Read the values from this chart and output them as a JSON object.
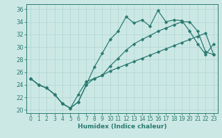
{
  "xlabel": "Humidex (Indice chaleur)",
  "xlim": [
    -0.5,
    23.5
  ],
  "ylim": [
    19.5,
    36.8
  ],
  "xticks": [
    0,
    1,
    2,
    3,
    4,
    5,
    6,
    7,
    8,
    9,
    10,
    11,
    12,
    13,
    14,
    15,
    16,
    17,
    18,
    19,
    20,
    21,
    22,
    23
  ],
  "yticks": [
    20,
    22,
    24,
    26,
    28,
    30,
    32,
    34,
    36
  ],
  "bg_color": "#cce8e5",
  "line_color": "#2a7a70",
  "grid_color": "#afd4d0",
  "line1_y": [
    25.0,
    24.0,
    23.5,
    22.5,
    21.0,
    20.3,
    21.3,
    24.0,
    26.8,
    29.0,
    31.2,
    32.5,
    34.8,
    33.8,
    34.3,
    33.3,
    35.8,
    34.0,
    34.3,
    34.2,
    32.5,
    30.5,
    28.8,
    30.5
  ],
  "line2_y": [
    25.0,
    24.0,
    23.5,
    22.5,
    21.0,
    20.3,
    21.3,
    24.0,
    25.0,
    25.5,
    27.0,
    28.2,
    29.5,
    30.5,
    31.2,
    31.8,
    32.5,
    33.0,
    33.5,
    34.0,
    34.0,
    32.5,
    29.2,
    28.8
  ],
  "line3_y": [
    25.0,
    24.0,
    23.5,
    22.5,
    21.0,
    20.3,
    22.5,
    24.5,
    25.0,
    25.5,
    26.2,
    26.7,
    27.2,
    27.7,
    28.2,
    28.7,
    29.2,
    29.7,
    30.2,
    30.7,
    31.2,
    31.7,
    32.2,
    28.8
  ],
  "lw": 0.9,
  "ms": 2.5
}
